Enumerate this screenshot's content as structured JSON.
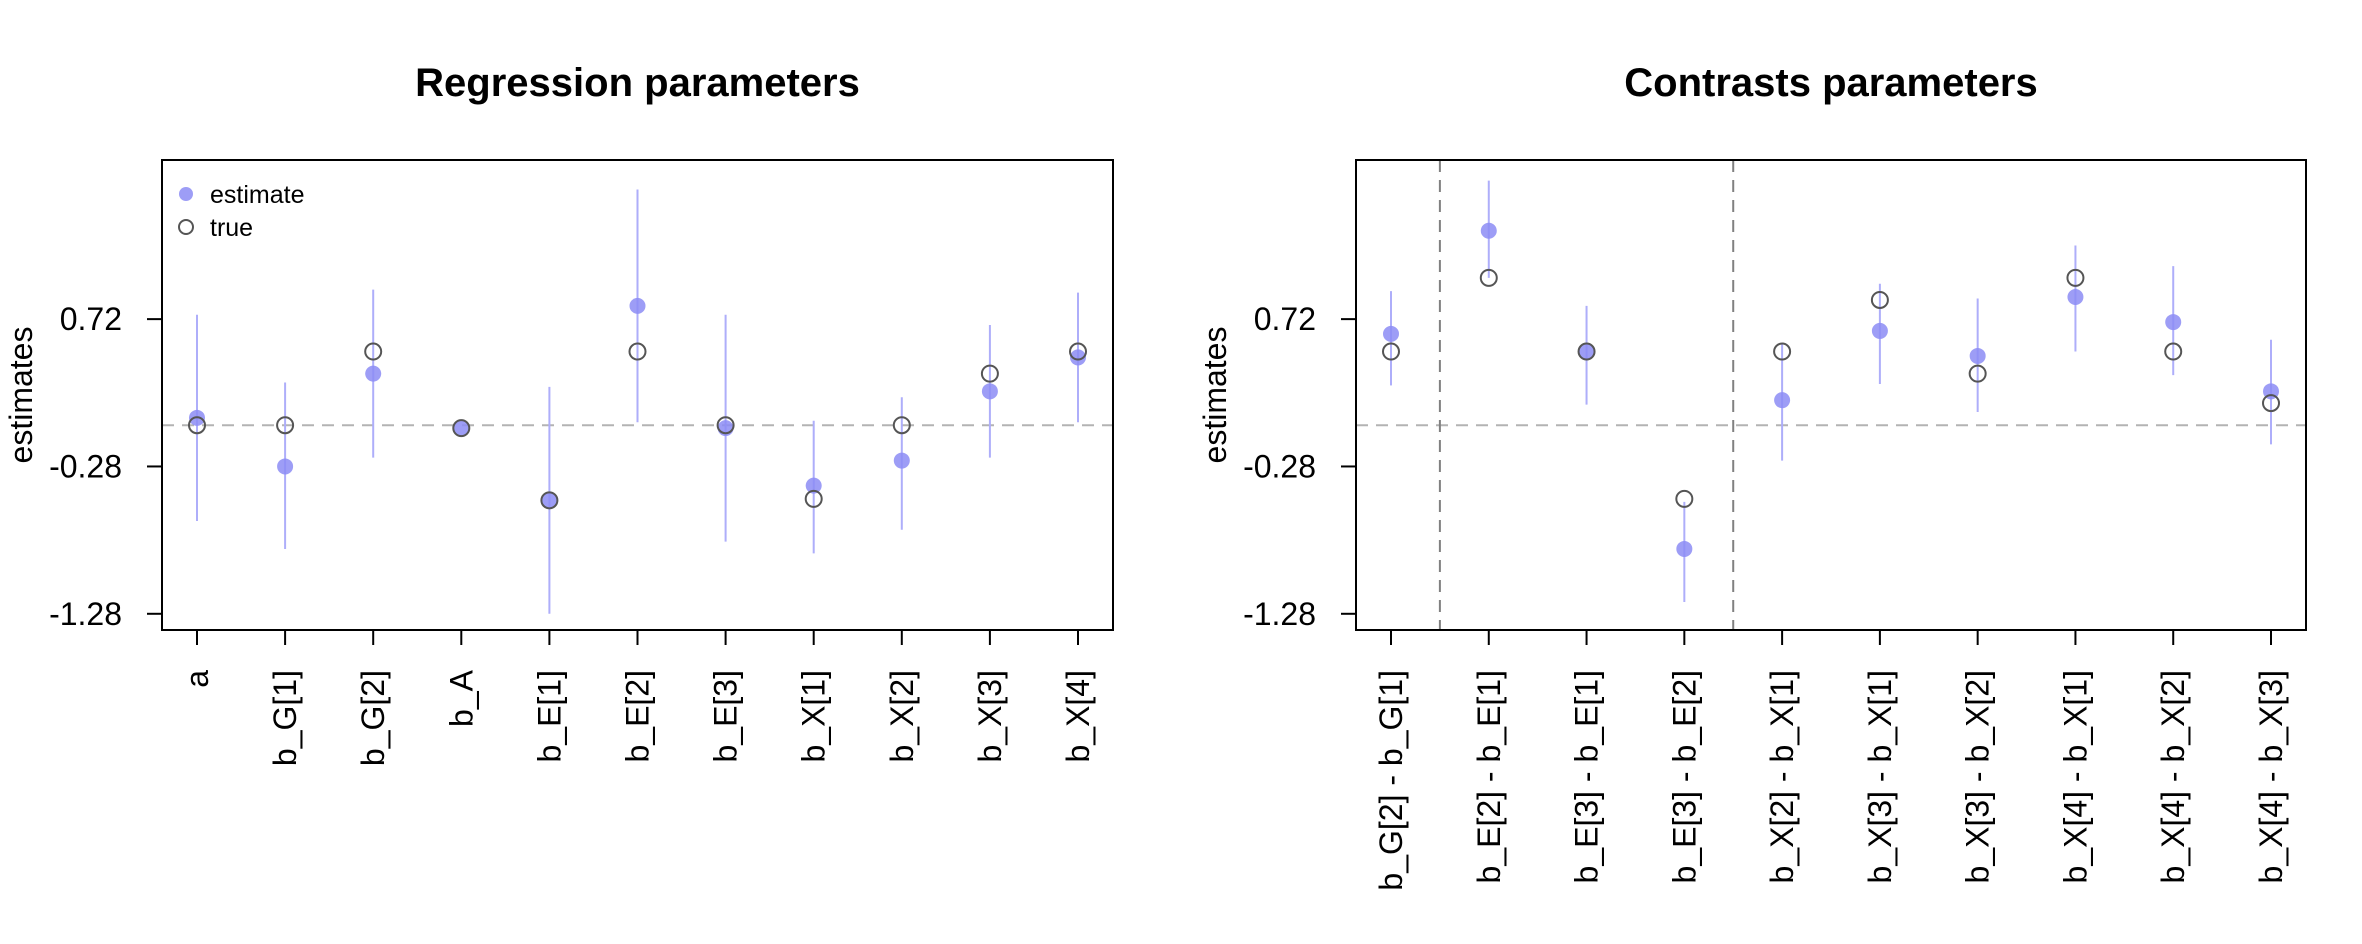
{
  "chart_data": [
    {
      "type": "scatter",
      "title": "Regression parameters",
      "ylabel": "estimates",
      "ylim": [
        -1.39,
        1.8
      ],
      "yticks": [
        0.72,
        -0.28,
        -1.28
      ],
      "ytick_labels": [
        "0.72",
        "-0.28",
        "-1.28"
      ],
      "reference_line": 0.0,
      "categories": [
        "a",
        "b_G[1]",
        "b_G[2]",
        "b_A",
        "b_E[1]",
        "b_E[2]",
        "b_E[3]",
        "b_X[1]",
        "b_X[2]",
        "b_X[3]",
        "b_X[4]"
      ],
      "series": [
        {
          "name": "estimate",
          "values": [
            0.05,
            -0.28,
            0.35,
            -0.02,
            -0.51,
            0.81,
            -0.02,
            -0.41,
            -0.24,
            0.23,
            0.46
          ],
          "ci_low": [
            -0.65,
            -0.84,
            -0.22,
            -0.02,
            -1.28,
            0.02,
            -0.79,
            -0.87,
            -0.71,
            -0.22,
            0.02
          ],
          "ci_high": [
            0.75,
            0.29,
            0.92,
            -0.02,
            0.26,
            1.6,
            0.75,
            0.03,
            0.19,
            0.68,
            0.9
          ]
        },
        {
          "name": "true",
          "values": [
            0.0,
            0.0,
            0.5,
            -0.02,
            -0.51,
            0.5,
            0.0,
            -0.5,
            0.0,
            0.35,
            0.5
          ]
        }
      ],
      "legend": {
        "position": "top-left",
        "entries": [
          "estimate",
          "true"
        ]
      },
      "colors": {
        "estimate": "#8c8cf5",
        "ci": "#aeaefa",
        "true": "#555555",
        "reference": "#b3b3b3"
      }
    },
    {
      "type": "scatter",
      "title": "Contrasts parameters",
      "ylabel": "estimates",
      "ylim": [
        -1.39,
        1.8
      ],
      "yticks": [
        0.72,
        -0.28,
        -1.28
      ],
      "ytick_labels": [
        "0.72",
        "-0.28",
        "-1.28"
      ],
      "reference_line": 0.0,
      "group_separators_after": [
        1,
        4
      ],
      "categories": [
        "b_G[2] - b_G[1]",
        "b_E[2] - b_E[1]",
        "b_E[3] - b_E[1]",
        "b_E[3] - b_E[2]",
        "b_X[2] - b_X[1]",
        "b_X[3] - b_X[1]",
        "b_X[3] - b_X[2]",
        "b_X[4] - b_X[1]",
        "b_X[4] - b_X[2]",
        "b_X[4] - b_X[3]"
      ],
      "series": [
        {
          "name": "estimate",
          "values": [
            0.62,
            1.32,
            0.5,
            -0.84,
            0.17,
            0.64,
            0.47,
            0.87,
            0.7,
            0.23
          ],
          "ci_low": [
            0.27,
            1.0,
            0.14,
            -1.2,
            -0.24,
            0.28,
            0.09,
            0.5,
            0.34,
            -0.13
          ],
          "ci_high": [
            0.91,
            1.66,
            0.81,
            -0.52,
            0.56,
            0.96,
            0.86,
            1.22,
            1.08,
            0.58
          ]
        },
        {
          "name": "true",
          "values": [
            0.5,
            1.0,
            0.5,
            -0.5,
            0.5,
            0.85,
            0.35,
            1.0,
            0.5,
            0.15
          ]
        }
      ],
      "colors": {
        "estimate": "#8c8cf5",
        "ci": "#aeaefa",
        "true": "#555555",
        "reference": "#b3b3b3",
        "separator": "#808080"
      }
    }
  ]
}
